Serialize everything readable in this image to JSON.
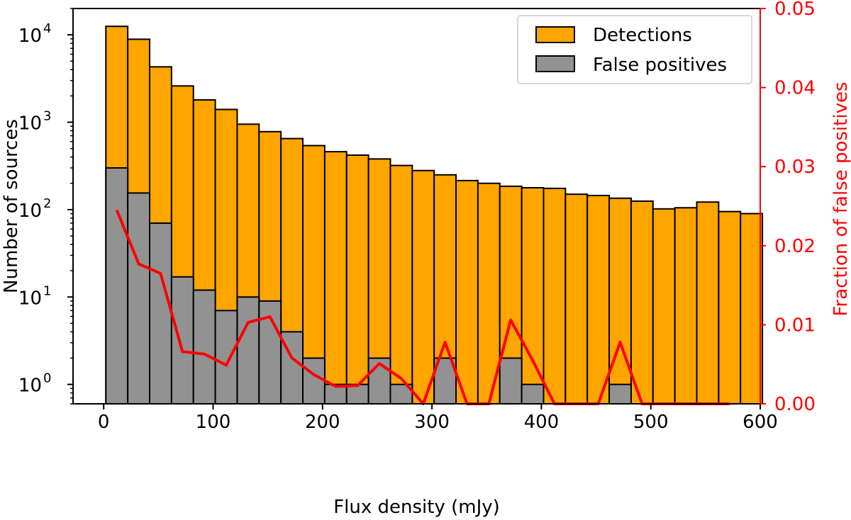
{
  "chart_data": {
    "type": "bar",
    "title": "",
    "xlabel": "Flux density (mJy)",
    "ylabel": "Number of sources",
    "y2label": "Fraction of false positives",
    "xlim": [
      -28,
      600
    ],
    "ylim": [
      0.6,
      20000
    ],
    "y2lim": [
      0.0,
      0.05
    ],
    "yscale": "log",
    "bin_width": 20,
    "bin_start": 2,
    "x_ticks": [
      0,
      100,
      200,
      300,
      400,
      500,
      600
    ],
    "x_tick_labels": [
      "0",
      "100",
      "200",
      "300",
      "400",
      "500",
      "600"
    ],
    "y_ticks": [
      {
        "value": 1,
        "base": "10",
        "exp": "0"
      },
      {
        "value": 10,
        "base": "10",
        "exp": "1"
      },
      {
        "value": 100,
        "base": "10",
        "exp": "2"
      },
      {
        "value": 1000,
        "base": "10",
        "exp": "3"
      },
      {
        "value": 10000,
        "base": "10",
        "exp": "4"
      }
    ],
    "y2_ticks": [
      0.0,
      0.01,
      0.02,
      0.03,
      0.04,
      0.05
    ],
    "y2_tick_labels": [
      "0.00",
      "0.01",
      "0.02",
      "0.03",
      "0.04",
      "0.05"
    ],
    "legend_position": "top-right",
    "series": [
      {
        "name": "Detections",
        "kind": "bar",
        "color": "#ffa500",
        "values": [
          12500,
          8900,
          4300,
          2600,
          1800,
          1400,
          950,
          780,
          650,
          540,
          460,
          420,
          380,
          320,
          280,
          250,
          215,
          200,
          185,
          178,
          175,
          150,
          145,
          135,
          125,
          102,
          105,
          122,
          95,
          90
        ]
      },
      {
        "name": "False positives",
        "kind": "bar",
        "color": "#929292",
        "values": [
          300,
          155,
          70,
          17,
          12,
          7,
          10,
          9,
          4,
          2,
          1,
          1,
          2,
          1,
          0,
          2,
          0,
          0,
          2,
          1,
          0,
          0,
          0,
          1,
          0,
          0,
          0,
          0,
          0,
          0
        ]
      },
      {
        "name": "Fraction of false positives",
        "kind": "line",
        "axis": "right",
        "color": "#ff0000",
        "x": [
          12,
          32,
          52,
          72,
          92,
          112,
          132,
          152,
          172,
          192,
          212,
          232,
          252,
          272,
          292,
          312,
          332,
          352,
          372,
          392,
          412,
          432,
          452,
          472,
          492,
          512,
          532,
          552,
          572
        ],
        "values": [
          0.0245,
          0.0177,
          0.0165,
          0.0066,
          0.0063,
          0.0049,
          0.0103,
          0.011,
          0.0058,
          0.0037,
          0.0022,
          0.0023,
          0.0051,
          0.0032,
          0.0,
          0.0078,
          0.0,
          0.0,
          0.0106,
          0.0055,
          0.0,
          0.0,
          0.0,
          0.0078,
          0.0,
          0.0,
          0.0,
          0.0,
          0.0
        ]
      }
    ],
    "colors": {
      "bar_edge": "#000000",
      "right_axis": "#ff0000"
    }
  }
}
